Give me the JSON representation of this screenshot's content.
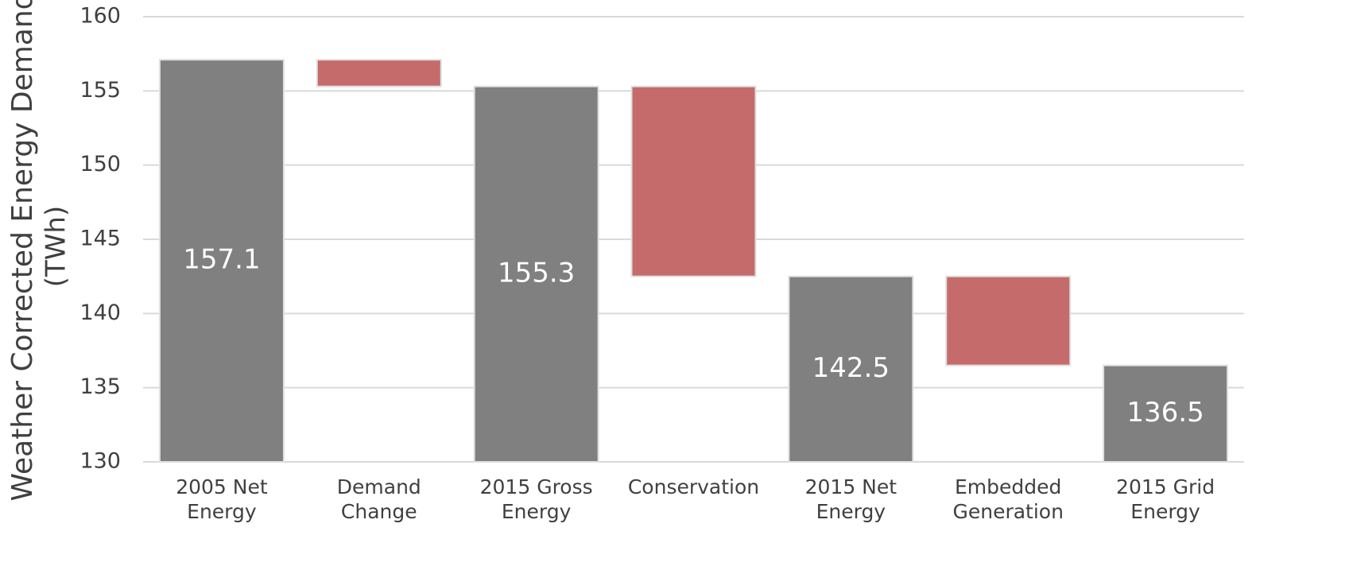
{
  "chart_data": {
    "type": "waterfall",
    "ylabel": [
      "Weather Corrected Energy Demand",
      "(TWh)"
    ],
    "categories": [
      [
        "2005 Net",
        "Energy"
      ],
      [
        "Demand",
        "Change"
      ],
      [
        "2015 Gross",
        "Energy"
      ],
      [
        "Conservation"
      ],
      [
        "2015 Net",
        "Energy"
      ],
      [
        "Embedded",
        "Generation"
      ],
      [
        "2015 Grid",
        "Energy"
      ]
    ],
    "values": [
      157.1,
      -1.8,
      155.3,
      -12.8,
      142.5,
      -6.0,
      136.5
    ],
    "is_total": [
      true,
      false,
      true,
      false,
      true,
      false,
      true
    ],
    "total_color": "#808080",
    "decrease_color": "#c56b6b",
    "ylim": [
      130,
      160
    ],
    "yticks": [
      130,
      135,
      140,
      145,
      150,
      155,
      160
    ],
    "grid": true
  }
}
